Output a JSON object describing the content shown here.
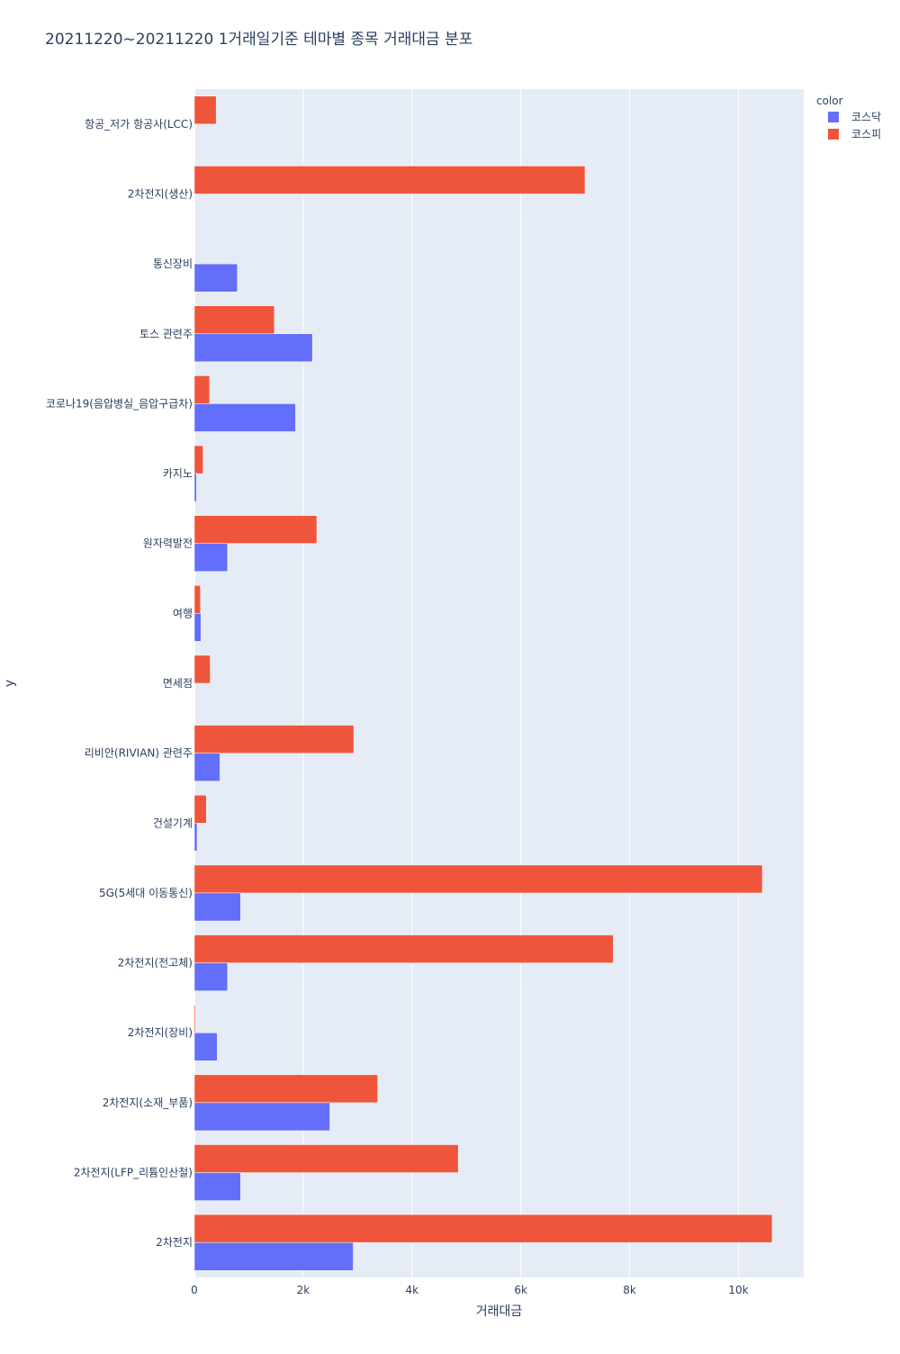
{
  "chart_data": {
    "type": "bar",
    "orientation": "horizontal",
    "barmode": "group",
    "title": "20211220~20211220 1거래일기준 테마별 종목 거래대금 분포",
    "xlabel": "거래대금",
    "ylabel": "y",
    "xlim": [
      0,
      11200
    ],
    "xticks": [
      0,
      2000,
      4000,
      6000,
      8000,
      10000
    ],
    "xtick_labels": [
      "0",
      "2k",
      "4k",
      "6k",
      "8k",
      "10k"
    ],
    "grid": true,
    "legend_title": "color",
    "legend_position": "top-right",
    "categories": [
      "항공_저가 항공사(LCC)",
      "2차전지(생산)",
      "통신장비",
      "토스 관련주",
      "코로나19(음압병실_음압구급차)",
      "카지노",
      "원자력발전",
      "여행",
      "면세점",
      "리비안(RIVIAN) 관련주",
      "건설기계",
      "5G(5세대 이동통신)",
      "2차전지(전고체)",
      "2차전지(장비)",
      "2차전지(소재_부품)",
      "2차전지(LFP_리튬인산철)",
      "2차전지"
    ],
    "series": [
      {
        "name": "코스닥",
        "color": "#636efa",
        "values": [
          0,
          0,
          790,
          2170,
          1860,
          40,
          610,
          120,
          0,
          470,
          50,
          850,
          610,
          420,
          2490,
          850,
          2920
        ]
      },
      {
        "name": "코스피",
        "color": "#ef553b",
        "values": [
          400,
          7180,
          0,
          1470,
          280,
          160,
          2250,
          110,
          290,
          2930,
          220,
          10440,
          7700,
          20,
          3370,
          4850,
          10620
        ]
      }
    ]
  }
}
